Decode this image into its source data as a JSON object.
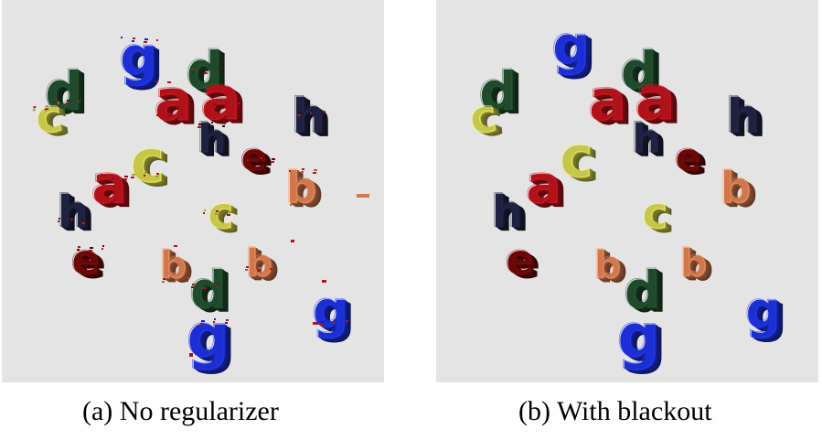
{
  "captions": {
    "a": "(a) No regularizer",
    "b": "(b) With blackout"
  },
  "colors": {
    "background": "#e4e4e4",
    "blue": "#1c2fd4",
    "dark_green": "#1f4a2c",
    "red": "#b0121a",
    "dark_red": "#6a0808",
    "yellow": "#c6c64a",
    "navy": "#1e2240",
    "salmon": "#d0774e"
  },
  "panels": {
    "a": {
      "letters": [
        {
          "char": "g",
          "color": "#1c2fd4"
        },
        {
          "char": "d",
          "color": "#1f4a2c"
        },
        {
          "char": "d",
          "color": "#1f4a2c"
        },
        {
          "char": "c",
          "color": "#c6c64a"
        },
        {
          "char": "a",
          "color": "#b0121a"
        },
        {
          "char": "a",
          "color": "#b0121a"
        },
        {
          "char": "h",
          "color": "#1e2240"
        },
        {
          "char": "h",
          "color": "#1e2240"
        },
        {
          "char": "c",
          "color": "#c6c64a"
        },
        {
          "char": "e",
          "color": "#6a0808"
        },
        {
          "char": "a",
          "color": "#b0121a"
        },
        {
          "char": "b",
          "color": "#d0774e"
        },
        {
          "char": "h",
          "color": "#1e2240"
        },
        {
          "char": "c",
          "color": "#c6c64a"
        },
        {
          "char": "e",
          "color": "#6a0808"
        },
        {
          "char": "b",
          "color": "#d0774e"
        },
        {
          "char": "b",
          "color": "#d0774e"
        },
        {
          "char": "d",
          "color": "#1f4a2c"
        },
        {
          "char": "g",
          "color": "#1c2fd4"
        },
        {
          "char": "g",
          "color": "#1c2fd4"
        }
      ]
    },
    "b": {
      "letters": [
        {
          "char": "g",
          "color": "#1c2fd4"
        },
        {
          "char": "d",
          "color": "#1f4a2c"
        },
        {
          "char": "d",
          "color": "#1f4a2c"
        },
        {
          "char": "c",
          "color": "#c6c64a"
        },
        {
          "char": "a",
          "color": "#b0121a"
        },
        {
          "char": "a",
          "color": "#b0121a"
        },
        {
          "char": "h",
          "color": "#1e2240"
        },
        {
          "char": "h",
          "color": "#1e2240"
        },
        {
          "char": "c",
          "color": "#c6c64a"
        },
        {
          "char": "e",
          "color": "#6a0808"
        },
        {
          "char": "a",
          "color": "#b0121a"
        },
        {
          "char": "b",
          "color": "#d0774e"
        },
        {
          "char": "h",
          "color": "#1e2240"
        },
        {
          "char": "c",
          "color": "#c6c64a"
        },
        {
          "char": "e",
          "color": "#6a0808"
        },
        {
          "char": "b",
          "color": "#d0774e"
        },
        {
          "char": "b",
          "color": "#d0774e"
        },
        {
          "char": "d",
          "color": "#1f4a2c"
        },
        {
          "char": "g",
          "color": "#1c2fd4"
        },
        {
          "char": "g",
          "color": "#1c2fd4"
        }
      ]
    }
  }
}
